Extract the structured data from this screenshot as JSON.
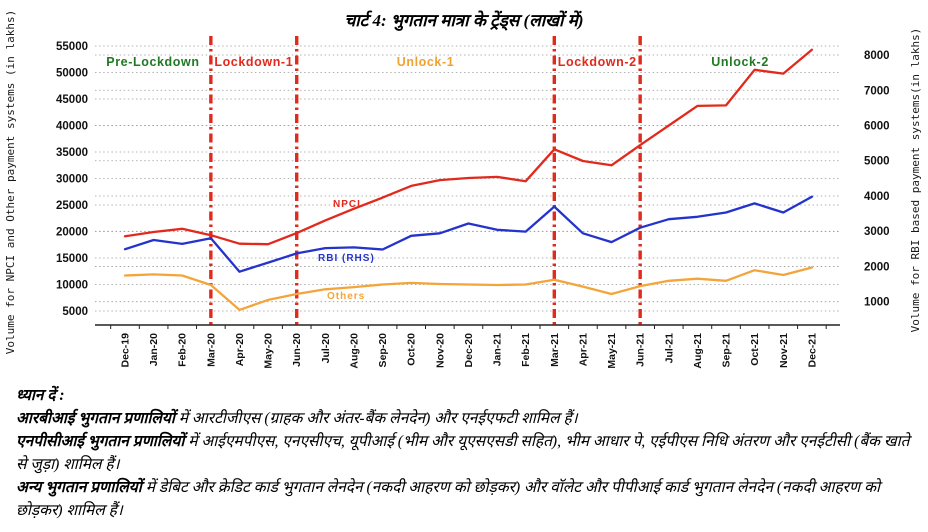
{
  "chart_data": {
    "type": "line",
    "title": "चार्ट 4: भुगतान मात्रा के ट्रेंड्स (लाखों में)",
    "categories": [
      "Dec-19",
      "Jan-20",
      "Feb-20",
      "Mar-20",
      "Apr-20",
      "May-20",
      "Jun-20",
      "Jul-20",
      "Aug-20",
      "Sep-20",
      "Oct-20",
      "Nov-20",
      "Dec-20",
      "Jan-21",
      "Feb-21",
      "Mar-21",
      "Apr-21",
      "May-21",
      "Jun-21",
      "Jul-21",
      "Aug-21",
      "Sep-21",
      "Oct-21",
      "Nov-21",
      "Dec-21"
    ],
    "series": [
      {
        "name": "NPCI",
        "axis": "left",
        "color": "#e2291b",
        "values": [
          19100,
          19900,
          20500,
          19300,
          17700,
          17600,
          19700,
          22100,
          24300,
          26400,
          28600,
          29700,
          30100,
          30300,
          29500,
          35500,
          33300,
          32500,
          36300,
          40000,
          43700,
          43800,
          50500,
          49800,
          54300
        ]
      },
      {
        "name": "RBI (RHS)",
        "axis": "right",
        "color": "#2433cc",
        "values": [
          2490,
          2750,
          2640,
          2800,
          1850,
          2110,
          2370,
          2520,
          2540,
          2480,
          2870,
          2940,
          3220,
          3040,
          2990,
          3700,
          2940,
          2690,
          3100,
          3340,
          3410,
          3530,
          3790,
          3530,
          3980
        ]
      },
      {
        "name": "Others",
        "axis": "left",
        "color": "#f3a53a",
        "values": [
          11700,
          11900,
          11700,
          9900,
          5200,
          7100,
          8200,
          9100,
          9500,
          10000,
          10300,
          10100,
          10000,
          9900,
          10000,
          10900,
          9600,
          8200,
          9700,
          10700,
          11100,
          10700,
          12700,
          11800,
          13200
        ]
      }
    ],
    "left_axis": {
      "label": "Volume for NPCI and Other payment systems (in lakhs)",
      "min": 5000,
      "max": 55000,
      "step": 5000
    },
    "right_axis": {
      "label": "Volume for RBI based payment systems(in lakhs)",
      "min": 1000,
      "max": 8000,
      "step": 1000
    },
    "phases": [
      {
        "label": "Pre-Lockdown",
        "color": "#1f7a23",
        "start": 0,
        "end": 3
      },
      {
        "label": "Lockdown-1",
        "color": "#e2291b",
        "start": 3,
        "end": 6
      },
      {
        "label": "Unlock-1",
        "color": "#f0a132",
        "start": 6,
        "end": 15
      },
      {
        "label": "Lockdown-2",
        "color": "#e2291b",
        "start": 15,
        "end": 18
      },
      {
        "label": "Unlock-2",
        "color": "#1f7a23",
        "start": 18,
        "end": 24
      }
    ],
    "divider_month_indices": [
      3,
      6,
      15,
      18
    ],
    "divider_color": "#e02b1c",
    "grid": true,
    "legend_position": "inline-labels"
  },
  "notes": {
    "heading": "ध्यान दें :",
    "items": [
      {
        "bold": "आरबीआई भुगतान प्रणालियों",
        "rest": " में आरटीजीएस (ग्राहक और अंतर-बैंक लेनदेन) और एनईएफटी शामिल हैं।"
      },
      {
        "bold": "एनपीसीआई भुगतान प्रणालियों",
        "rest": " में आईएमपीएस, एनएसीएच, यूपीआई (भीम और यूएसएसडी सहित), भीम आधार पे, एईपीएस निधि अंतरण और एनईटीसी (बैंक खाते से जुड़ा) शामिल हैं।"
      },
      {
        "bold": "अन्य भुगतान प्रणालियों",
        "rest": " में डेबिट और क्रेडिट कार्ड भुगतान लेनदेन (नकदी आहरण को छोड़कर) और वॉलेट और पीपीआई कार्ड भुगतान लेनदेन (नकदी आहरण को छोड़कर) शामिल हैं।"
      }
    ]
  }
}
